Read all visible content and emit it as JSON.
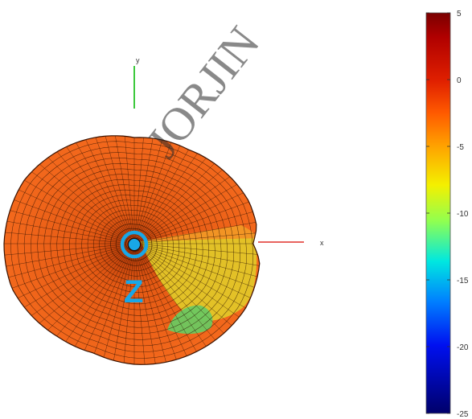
{
  "axes": {
    "x_label": "x",
    "y_label": "y",
    "z_label": "Z"
  },
  "watermark": "JORJIN",
  "colorbar": {
    "min": -25,
    "max": 5,
    "ticks": [
      {
        "value": 5,
        "label": "5"
      },
      {
        "value": 0,
        "label": "0"
      },
      {
        "value": -5,
        "label": "-5"
      },
      {
        "value": -10,
        "label": "-10"
      },
      {
        "value": -15,
        "label": "-15"
      },
      {
        "value": -20,
        "label": "-20"
      },
      {
        "value": -25,
        "label": "-25"
      }
    ],
    "colormap": [
      "#7a0000",
      "#d82000",
      "#ff6a00",
      "#ffb000",
      "#f0f000",
      "#80ff60",
      "#00e0ff",
      "#0070ff",
      "#0000c8",
      "#00006a"
    ]
  },
  "colors": {
    "pattern_main": "#f06018",
    "pattern_warm": "#f79a1e",
    "pattern_yellow": "#e8e82a",
    "pattern_green": "#6cc860",
    "mesh_line": "#2a1000",
    "x_axis": "#e0302a",
    "y_axis": "#3cc83c",
    "z_marker": "#18a7e8"
  }
}
